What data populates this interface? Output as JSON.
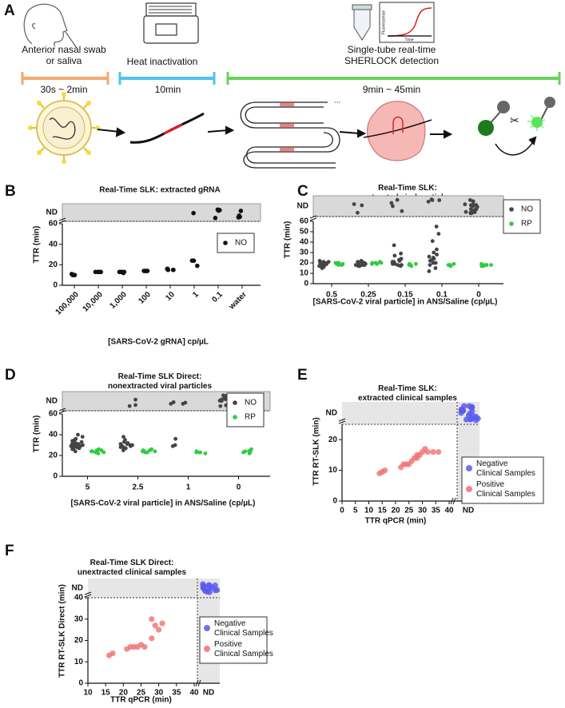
{
  "panel_a": {
    "letter": "A",
    "steps": [
      {
        "label": "Anterior nasal swab\nor saliva",
        "time": "30s ~ 2min",
        "color": "#f5a86e"
      },
      {
        "label": "Heat inactivation",
        "time": "10min",
        "color": "#4fc3f0"
      },
      {
        "label": "Single-tube real-time\nSHERLOCK detection",
        "time": "9min ~ 45min",
        "color": "#6ad25a"
      }
    ],
    "inset": {
      "y_label": "Fluorescence",
      "x_label": "Time"
    },
    "ellipsis": "..."
  },
  "chart_data": [
    {
      "type": "strip",
      "panel": "B",
      "title": "Real-Time SLK: extracted gRNA",
      "y_label": "TTR (min)",
      "x_label": "[SARS-CoV-2 gRNA] cp/µL",
      "nd_label": "ND",
      "categories": [
        "100,000",
        "10,000",
        "1,000",
        "100",
        "10",
        "1",
        "0.1",
        "water"
      ],
      "ylim": [
        0,
        60
      ],
      "yticks": [
        0,
        20,
        40,
        60
      ],
      "series": [
        {
          "name": "NO",
          "color": "#111111",
          "values": [
            [
              10,
              10,
              11,
              10,
              10
            ],
            [
              13,
              13,
              13,
              13,
              13
            ],
            [
              13,
              13,
              12,
              13,
              13
            ],
            [
              14,
              14,
              14,
              14,
              14
            ],
            [
              15,
              16,
              15,
              15,
              16
            ],
            [
              24,
              19,
              24
            ],
            [],
            []
          ],
          "nd": [
            0,
            0,
            0,
            0,
            0,
            1,
            4,
            4
          ]
        }
      ]
    },
    {
      "type": "strip",
      "panel": "C",
      "title": "Real-Time SLK:\nextracted viral particles",
      "y_label": "TTR (min)",
      "x_label": "[SARS-CoV-2 viral particle] in ANS/Saline (cp/µL)",
      "nd_label": "ND",
      "categories": [
        "0.5",
        "0.25",
        "0.15",
        "0.1",
        "0"
      ],
      "ylim": [
        0,
        60
      ],
      "yticks": [
        0,
        10,
        20,
        30,
        40,
        50,
        60
      ],
      "series": [
        {
          "name": "NO",
          "color": "#444444",
          "values": [
            [
              16,
              17,
              18,
              18,
              19,
              19,
              20,
              20,
              21,
              22,
              17,
              18,
              19,
              20,
              21,
              15,
              18,
              19
            ],
            [
              17,
              18,
              18,
              19,
              19,
              20,
              20,
              21,
              22,
              18,
              19,
              20,
              21,
              17,
              18,
              19
            ],
            [
              17,
              18,
              19,
              20,
              21,
              22,
              22,
              23,
              24,
              27,
              29,
              37,
              19,
              20,
              21,
              18
            ],
            [
              12,
              15,
              18,
              20,
              22,
              24,
              25,
              26,
              28,
              30,
              33,
              41,
              48,
              55,
              20,
              23
            ],
            []
          ],
          "nd": [
            0,
            3,
            4,
            4,
            20
          ]
        },
        {
          "name": "RP",
          "color": "#2ecc40",
          "values": [
            [
              18,
              19,
              19,
              20,
              20,
              19,
              18,
              20
            ],
            [
              19,
              20,
              20,
              21,
              19,
              20,
              20
            ],
            [
              17,
              18,
              18,
              19,
              18,
              19
            ],
            [
              17,
              18,
              18,
              18,
              19
            ],
            [
              17,
              18,
              18,
              19,
              18,
              18,
              17
            ]
          ],
          "nd": [
            0,
            0,
            0,
            0,
            0
          ]
        }
      ]
    },
    {
      "type": "strip",
      "panel": "D",
      "title": "Real-Time SLK Direct:\nnonextracted viral particles",
      "y_label": "TTR (min)",
      "x_label": "[SARS-CoV-2 viral particle] in ANS/Saline (cp/µL)",
      "nd_label": "ND",
      "categories": [
        "5",
        "2.5",
        "1",
        "0"
      ],
      "ylim": [
        0,
        60
      ],
      "yticks": [
        0,
        20,
        40,
        60
      ],
      "series": [
        {
          "name": "NO",
          "color": "#444444",
          "values": [
            [
              24,
              26,
              27,
              28,
              29,
              30,
              30,
              31,
              32,
              33,
              34,
              35,
              36,
              38,
              40,
              29,
              31,
              28,
              27,
              30
            ],
            [
              25,
              27,
              28,
              29,
              30,
              30,
              31,
              32,
              33,
              35,
              38,
              29,
              31,
              28
            ],
            [
              36,
              30,
              29
            ],
            []
          ],
          "nd": [
            0,
            3,
            4,
            18
          ]
        },
        {
          "name": "RP",
          "color": "#2ecc40",
          "values": [
            [
              22,
              23,
              24,
              24,
              25,
              25,
              26,
              23,
              24,
              25
            ],
            [
              23,
              24,
              24,
              25,
              26,
              25,
              24,
              23
            ],
            [
              22,
              23,
              23,
              24,
              23
            ],
            [
              22,
              23,
              24,
              25,
              26,
              24,
              23
            ]
          ],
          "nd": [
            0,
            0,
            0,
            0
          ]
        }
      ]
    },
    {
      "type": "scatter",
      "panel": "E",
      "title": "Real-Time SLK:\nextracted clinical samples",
      "y_label": "TTR RT-SLK (min)",
      "x_label": "TTR qPCR (min)",
      "nd_label": "ND",
      "xlim": [
        0,
        40
      ],
      "xticks": [
        0,
        5,
        10,
        15,
        20,
        25,
        30,
        35,
        40
      ],
      "ylim": [
        0,
        25
      ],
      "yticks": [
        0,
        10,
        20
      ],
      "series": [
        {
          "name": "Negative\nClinical Samples",
          "color": "#5a5af0",
          "nd": 22
        },
        {
          "name": "Positive\nClinical Samples",
          "color": "#f07070",
          "x": [
            14,
            15,
            16,
            22,
            23,
            24,
            25,
            26,
            27,
            28,
            28,
            29,
            30,
            31,
            32,
            34,
            36
          ],
          "values": [
            9,
            9.5,
            10,
            11,
            12,
            12,
            12,
            13,
            14,
            15,
            14,
            15,
            16,
            17,
            16,
            16,
            16
          ]
        }
      ]
    },
    {
      "type": "scatter",
      "panel": "F",
      "title": "Real-Time SLK Direct:\nunextracted clinical samples",
      "y_label": "TTR RT-SLK Direct (min)",
      "x_label": "TTR qPCR (min)",
      "nd_label": "ND",
      "xlim": [
        10,
        40
      ],
      "xticks": [
        10,
        15,
        20,
        25,
        30,
        35,
        40
      ],
      "ylim": [
        0,
        40
      ],
      "yticks": [
        0,
        10,
        20,
        30,
        40
      ],
      "series": [
        {
          "name": "Negative\nClinical Samples",
          "color": "#5a5af0",
          "nd": 16
        },
        {
          "name": "Positive\nClinical Samples",
          "color": "#f07070",
          "x": [
            16,
            17,
            21,
            22,
            23,
            24,
            25,
            26,
            28,
            28,
            29,
            30,
            31
          ],
          "values": [
            13,
            14,
            16,
            17,
            17,
            17,
            18,
            17,
            21,
            30,
            27,
            25,
            28
          ]
        }
      ]
    }
  ]
}
